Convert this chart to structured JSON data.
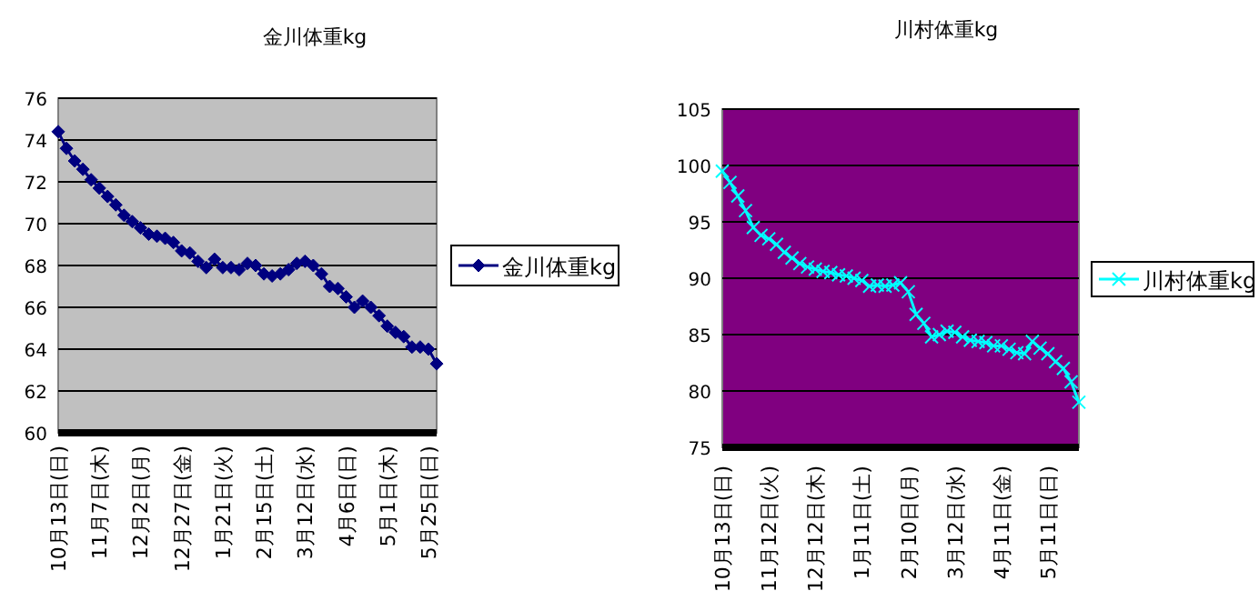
{
  "chart_data": [
    {
      "type": "line",
      "title": "金川体重kg",
      "categories": [
        "10月13日(日)",
        null,
        null,
        null,
        null,
        "11月7日(木)",
        null,
        null,
        null,
        null,
        "12月2日(月)",
        null,
        null,
        null,
        null,
        "12月27日(金)",
        null,
        null,
        null,
        null,
        "1月21日(火)",
        null,
        null,
        null,
        null,
        "2月15日(土)",
        null,
        null,
        null,
        null,
        "3月12日(水)",
        null,
        null,
        null,
        null,
        "4月6日(日)",
        null,
        null,
        null,
        null,
        "5月1日(木)",
        null,
        null,
        null,
        null,
        "5月25日(日)",
        null
      ],
      "series": [
        {
          "name": "金川体重kg",
          "color": "#000080",
          "values": [
            74.4,
            73.6,
            73.0,
            72.6,
            72.1,
            71.7,
            71.3,
            70.9,
            70.4,
            70.1,
            69.8,
            69.5,
            69.4,
            69.3,
            69.1,
            68.7,
            68.6,
            68.2,
            67.9,
            68.3,
            67.9,
            67.9,
            67.8,
            68.1,
            68.0,
            67.6,
            67.5,
            67.6,
            67.8,
            68.1,
            68.2,
            68.0,
            67.6,
            67.0,
            66.9,
            66.5,
            66.0,
            66.3,
            66.0,
            65.6,
            65.1,
            64.8,
            64.6,
            64.1,
            64.1,
            64.0,
            63.3
          ]
        }
      ],
      "ylim": [
        60,
        76
      ],
      "yticks": [
        60,
        62,
        64,
        66,
        68,
        70,
        72,
        74,
        76
      ],
      "grid": "y",
      "legend": "right",
      "marker": "diamond"
    },
    {
      "type": "line",
      "title": "川村体重kg",
      "categories": [
        "10月13日(日)",
        null,
        null,
        null,
        null,
        null,
        "11月12日(火)",
        null,
        null,
        null,
        null,
        null,
        "12月12日(木)",
        null,
        null,
        null,
        null,
        null,
        "1月11日(土)",
        null,
        null,
        null,
        null,
        null,
        "2月10日(月)",
        null,
        null,
        null,
        null,
        null,
        "3月12日(水)",
        null,
        null,
        null,
        null,
        null,
        "4月11日(金)",
        null,
        null,
        null,
        null,
        null,
        "5月11日(日)",
        null,
        null,
        null,
        null
      ],
      "series": [
        {
          "name": "川村体重kg",
          "color": "#00ffff",
          "values": [
            99.5,
            98.5,
            97.3,
            96.0,
            94.5,
            93.8,
            93.5,
            93.0,
            92.3,
            91.8,
            91.3,
            91.0,
            90.8,
            90.6,
            90.5,
            90.3,
            90.2,
            90.0,
            89.8,
            89.3,
            89.4,
            89.3,
            89.4,
            89.6,
            88.8,
            86.8,
            86.0,
            84.8,
            85.0,
            85.3,
            85.2,
            84.8,
            84.5,
            84.4,
            84.3,
            84.0,
            84.0,
            83.7,
            83.4,
            83.3,
            84.4,
            83.8,
            83.3,
            82.6,
            82.0,
            80.8,
            79.0
          ]
        }
      ],
      "ylim": [
        75,
        105
      ],
      "yticks": [
        75,
        80,
        85,
        90,
        95,
        100,
        105
      ],
      "grid": "y",
      "legend": "right",
      "marker": "cross"
    }
  ]
}
